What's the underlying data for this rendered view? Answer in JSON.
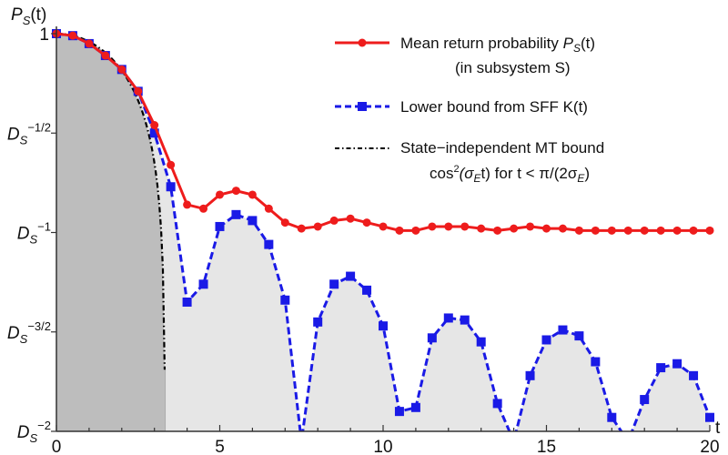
{
  "chart_data": {
    "type": "line",
    "title": "",
    "xlabel": "t",
    "ylabel": "P_S(t)",
    "ylabel_display": {
      "base": "P",
      "sub": "S",
      "tail": "(t)"
    },
    "y_scale": "log base D_S (values given as exponent e where P = D_S^-e)",
    "xlim": [
      0,
      20
    ],
    "ylim_exponent": [
      0,
      2
    ],
    "x_ticks": [
      0,
      5,
      10,
      15,
      20
    ],
    "x_minor_step": 1,
    "y_ticks": [
      {
        "exp": 0,
        "label_base": "1",
        "label_sup": ""
      },
      {
        "exp": 0.5,
        "label_base": "D",
        "label_sub": "S",
        "label_sup": "−1/2"
      },
      {
        "exp": 1,
        "label_base": "D",
        "label_sub": "S",
        "label_sup": "−1"
      },
      {
        "exp": 1.5,
        "label_base": "D",
        "label_sub": "S",
        "label_sup": "−3/2"
      },
      {
        "exp": 2,
        "label_base": "D",
        "label_sub": "S",
        "label_sup": "−2"
      }
    ],
    "grid": false,
    "legend_position": "upper right",
    "t": [
      0,
      0.5,
      1,
      1.5,
      2,
      2.5,
      3,
      3.5,
      4,
      4.5,
      5,
      5.5,
      6,
      6.5,
      7,
      7.5,
      8,
      8.5,
      9,
      9.5,
      10,
      10.5,
      11,
      11.5,
      12,
      12.5,
      13,
      13.5,
      14,
      14.5,
      15,
      15.5,
      16,
      16.5,
      17,
      17.5,
      18,
      18.5,
      19,
      19.5,
      20
    ],
    "series": [
      {
        "name": "Mean return probability P_S(t) (in subsystem S)",
        "color": "#ee1c1c",
        "style": "solid",
        "marker": "circle",
        "exponent_values": [
          0,
          0.01,
          0.05,
          0.11,
          0.18,
          0.29,
          0.46,
          0.66,
          0.86,
          0.88,
          0.81,
          0.79,
          0.81,
          0.88,
          0.95,
          0.98,
          0.97,
          0.94,
          0.93,
          0.95,
          0.97,
          0.99,
          0.99,
          0.97,
          0.97,
          0.97,
          0.98,
          0.99,
          0.98,
          0.97,
          0.98,
          0.98,
          0.99,
          0.99,
          0.99,
          0.99,
          0.99,
          0.99,
          0.99,
          0.99,
          0.99
        ]
      },
      {
        "name": "Lower bound from SFF K(t)",
        "color": "#1a1ae6",
        "style": "dashed",
        "marker": "square",
        "exponent_values": [
          0,
          0.01,
          0.05,
          0.11,
          0.18,
          0.29,
          0.5,
          0.77,
          1.35,
          1.26,
          0.97,
          0.91,
          0.94,
          1.06,
          1.34,
          2.05,
          1.45,
          1.26,
          1.22,
          1.29,
          1.47,
          1.9,
          1.88,
          1.53,
          1.43,
          1.44,
          1.55,
          1.86,
          2.05,
          1.72,
          1.54,
          1.49,
          1.52,
          1.65,
          1.93,
          2.05,
          1.84,
          1.68,
          1.66,
          1.72,
          1.93
        ]
      },
      {
        "name": "State-independent MT bound cos²(σ_E t) for t < π/(2σ_E)",
        "color": "#000000",
        "style": "dash-dot",
        "marker": "none",
        "t_end": 3.33,
        "exponent_at_end": 1.69,
        "shaded_region_color": "#bdbdbd"
      }
    ],
    "fill_under_sff_color": "#e6e6e6"
  },
  "legend": {
    "items": [
      {
        "line1": "Mean return probability ",
        "line1_italic": "P",
        "line1_sub": "S",
        "line1_tail": "(t)",
        "line2": "(in subsystem S)"
      },
      {
        "line1": "Lower bound from SFF K(t)"
      },
      {
        "line1": "State−independent MT bound",
        "line2_pre": "cos",
        "line2_sup": "2",
        "line2_mid": "(σ",
        "line2_sub": "E",
        "line2_tail": "t) for t < π/(2σ",
        "line2_sub2": "E",
        "line2_end": ")"
      }
    ]
  }
}
